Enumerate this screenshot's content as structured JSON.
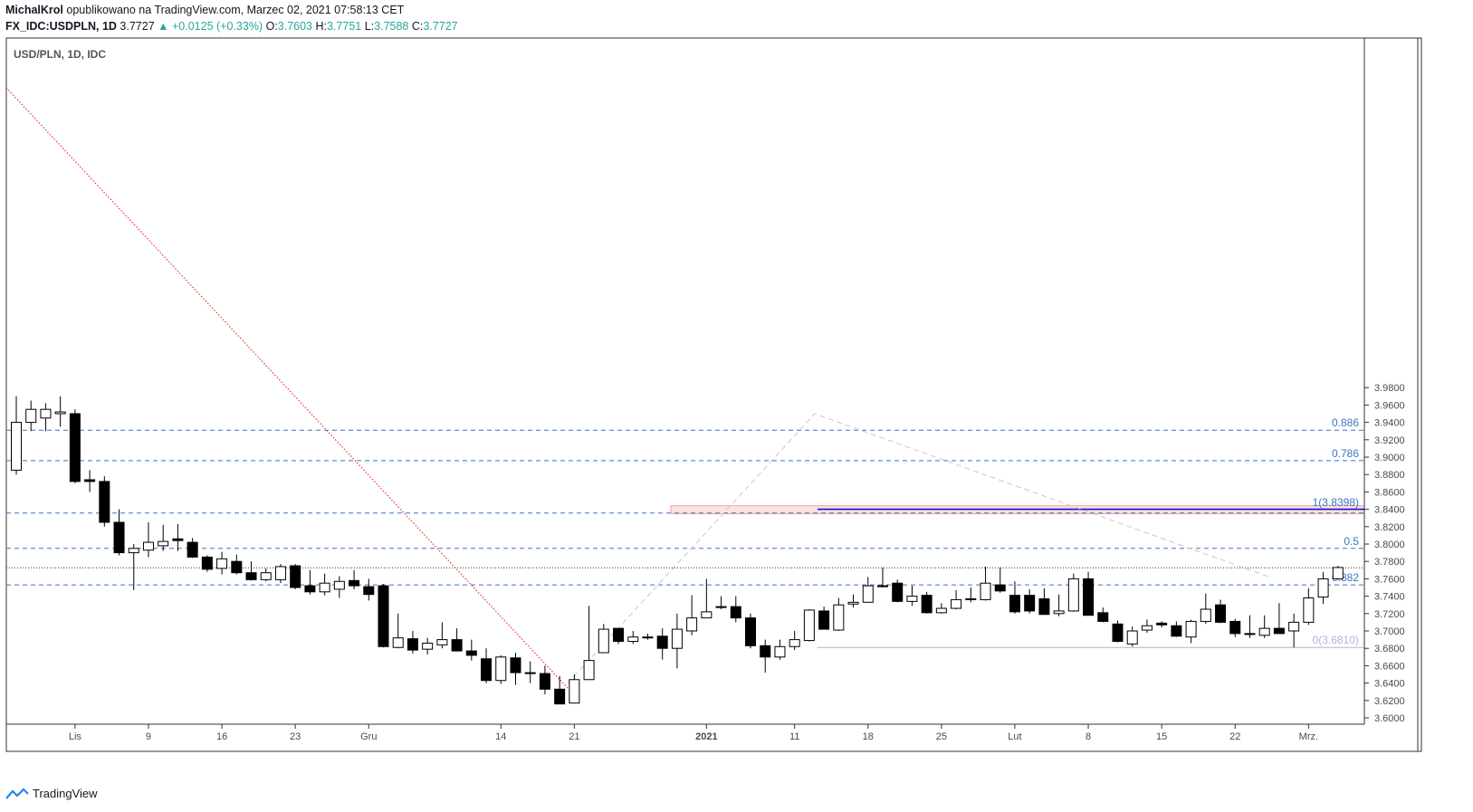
{
  "header": {
    "author": "MichalKrol",
    "published": "opublikowano na TradingView.com, Marzec 02, 2021 07:58:13 CET",
    "symbol": "FX_IDC:USDPLN, 1D",
    "last": "3.7727",
    "change": "+0.0125 (+0.33%)",
    "o_label": "O:",
    "o_val": "3.7603",
    "h_label": "H:",
    "h_val": "3.7751",
    "l_label": "L:",
    "l_val": "3.7588",
    "c_label": "C:",
    "c_val": "3.7727"
  },
  "footer": {
    "brand": "TradingView"
  },
  "chart_data": {
    "type": "candlestick",
    "title": "USD/PLN, 1D, IDC",
    "ylim": [
      3.596,
      3.992
    ],
    "y_ticks": [
      "3.6000",
      "3.6200",
      "3.6400",
      "3.6600",
      "3.6800",
      "3.7000",
      "3.7200",
      "3.7400",
      "3.7600",
      "3.7800",
      "3.8000",
      "3.8200",
      "3.8400",
      "3.8600",
      "3.8800",
      "3.9000",
      "3.9200",
      "3.9400",
      "3.9600",
      "3.9800"
    ],
    "x_tick_labels": [
      "Lis",
      "9",
      "16",
      "23",
      "Gru",
      "14",
      "21",
      "2021",
      "11",
      "18",
      "25",
      "Lut",
      "8",
      "15",
      "22",
      "Mrz."
    ],
    "x_tick_index": [
      4,
      9,
      14,
      19,
      24,
      33,
      38,
      47,
      53,
      58,
      63,
      68,
      73,
      78,
      83,
      88
    ],
    "candles": [
      {
        "o": 3.885,
        "h": 3.97,
        "l": 3.88,
        "c": 3.94
      },
      {
        "o": 3.94,
        "h": 3.965,
        "l": 3.93,
        "c": 3.955
      },
      {
        "o": 3.945,
        "h": 3.962,
        "l": 3.93,
        "c": 3.955
      },
      {
        "o": 3.95,
        "h": 3.97,
        "l": 3.935,
        "c": 3.952
      },
      {
        "o": 3.95,
        "h": 3.955,
        "l": 3.87,
        "c": 3.872
      },
      {
        "o": 3.874,
        "h": 3.885,
        "l": 3.86,
        "c": 3.872
      },
      {
        "o": 3.872,
        "h": 3.878,
        "l": 3.82,
        "c": 3.825
      },
      {
        "o": 3.825,
        "h": 3.84,
        "l": 3.787,
        "c": 3.79
      },
      {
        "o": 3.79,
        "h": 3.8,
        "l": 3.747,
        "c": 3.795
      },
      {
        "o": 3.793,
        "h": 3.825,
        "l": 3.785,
        "c": 3.802
      },
      {
        "o": 3.798,
        "h": 3.822,
        "l": 3.792,
        "c": 3.803
      },
      {
        "o": 3.806,
        "h": 3.823,
        "l": 3.792,
        "c": 3.804
      },
      {
        "o": 3.802,
        "h": 3.807,
        "l": 3.784,
        "c": 3.785
      },
      {
        "o": 3.785,
        "h": 3.787,
        "l": 3.768,
        "c": 3.771
      },
      {
        "o": 3.772,
        "h": 3.791,
        "l": 3.765,
        "c": 3.783
      },
      {
        "o": 3.78,
        "h": 3.788,
        "l": 3.765,
        "c": 3.767
      },
      {
        "o": 3.767,
        "h": 3.78,
        "l": 3.758,
        "c": 3.759
      },
      {
        "o": 3.759,
        "h": 3.772,
        "l": 3.757,
        "c": 3.767
      },
      {
        "o": 3.759,
        "h": 3.777,
        "l": 3.755,
        "c": 3.774
      },
      {
        "o": 3.775,
        "h": 3.777,
        "l": 3.748,
        "c": 3.75
      },
      {
        "o": 3.752,
        "h": 3.77,
        "l": 3.742,
        "c": 3.745
      },
      {
        "o": 3.745,
        "h": 3.766,
        "l": 3.741,
        "c": 3.755
      },
      {
        "o": 3.748,
        "h": 3.763,
        "l": 3.738,
        "c": 3.757
      },
      {
        "o": 3.758,
        "h": 3.77,
        "l": 3.748,
        "c": 3.752
      },
      {
        "o": 3.751,
        "h": 3.76,
        "l": 3.735,
        "c": 3.742
      },
      {
        "o": 3.752,
        "h": 3.754,
        "l": 3.681,
        "c": 3.682
      },
      {
        "o": 3.681,
        "h": 3.72,
        "l": 3.68,
        "c": 3.692
      },
      {
        "o": 3.691,
        "h": 3.7,
        "l": 3.674,
        "c": 3.678
      },
      {
        "o": 3.679,
        "h": 3.692,
        "l": 3.673,
        "c": 3.686
      },
      {
        "o": 3.684,
        "h": 3.71,
        "l": 3.68,
        "c": 3.69
      },
      {
        "o": 3.69,
        "h": 3.703,
        "l": 3.677,
        "c": 3.677
      },
      {
        "o": 3.677,
        "h": 3.69,
        "l": 3.666,
        "c": 3.672
      },
      {
        "o": 3.668,
        "h": 3.68,
        "l": 3.64,
        "c": 3.643
      },
      {
        "o": 3.643,
        "h": 3.672,
        "l": 3.639,
        "c": 3.67
      },
      {
        "o": 3.669,
        "h": 3.675,
        "l": 3.638,
        "c": 3.652
      },
      {
        "o": 3.652,
        "h": 3.665,
        "l": 3.64,
        "c": 3.651
      },
      {
        "o": 3.651,
        "h": 3.66,
        "l": 3.627,
        "c": 3.633
      },
      {
        "o": 3.633,
        "h": 3.648,
        "l": 3.616,
        "c": 3.616
      },
      {
        "o": 3.617,
        "h": 3.65,
        "l": 3.617,
        "c": 3.644
      },
      {
        "o": 3.644,
        "h": 3.729,
        "l": 3.644,
        "c": 3.666
      },
      {
        "o": 3.675,
        "h": 3.708,
        "l": 3.675,
        "c": 3.702
      },
      {
        "o": 3.703,
        "h": 3.702,
        "l": 3.685,
        "c": 3.688
      },
      {
        "o": 3.688,
        "h": 3.7,
        "l": 3.685,
        "c": 3.693
      },
      {
        "o": 3.693,
        "h": 3.697,
        "l": 3.69,
        "c": 3.692
      },
      {
        "o": 3.694,
        "h": 3.703,
        "l": 3.667,
        "c": 3.68
      },
      {
        "o": 3.68,
        "h": 3.72,
        "l": 3.657,
        "c": 3.702
      },
      {
        "o": 3.7,
        "h": 3.741,
        "l": 3.695,
        "c": 3.715
      },
      {
        "o": 3.715,
        "h": 3.76,
        "l": 3.715,
        "c": 3.722
      },
      {
        "o": 3.728,
        "h": 3.74,
        "l": 3.725,
        "c": 3.727
      },
      {
        "o": 3.728,
        "h": 3.74,
        "l": 3.71,
        "c": 3.715
      },
      {
        "o": 3.715,
        "h": 3.72,
        "l": 3.68,
        "c": 3.683
      },
      {
        "o": 3.683,
        "h": 3.69,
        "l": 3.652,
        "c": 3.67
      },
      {
        "o": 3.67,
        "h": 3.69,
        "l": 3.667,
        "c": 3.682
      },
      {
        "o": 3.682,
        "h": 3.7,
        "l": 3.678,
        "c": 3.69
      },
      {
        "o": 3.689,
        "h": 3.725,
        "l": 3.688,
        "c": 3.724
      },
      {
        "o": 3.723,
        "h": 3.728,
        "l": 3.702,
        "c": 3.702
      },
      {
        "o": 3.701,
        "h": 3.738,
        "l": 3.7,
        "c": 3.73
      },
      {
        "o": 3.731,
        "h": 3.742,
        "l": 3.727,
        "c": 3.733
      },
      {
        "o": 3.733,
        "h": 3.762,
        "l": 3.733,
        "c": 3.752
      },
      {
        "o": 3.752,
        "h": 3.773,
        "l": 3.75,
        "c": 3.751
      },
      {
        "o": 3.755,
        "h": 3.759,
        "l": 3.733,
        "c": 3.734
      },
      {
        "o": 3.734,
        "h": 3.752,
        "l": 3.729,
        "c": 3.74
      },
      {
        "o": 3.741,
        "h": 3.745,
        "l": 3.72,
        "c": 3.721
      },
      {
        "o": 3.721,
        "h": 3.732,
        "l": 3.72,
        "c": 3.726
      },
      {
        "o": 3.726,
        "h": 3.747,
        "l": 3.725,
        "c": 3.736
      },
      {
        "o": 3.736,
        "h": 3.75,
        "l": 3.733,
        "c": 3.737
      },
      {
        "o": 3.736,
        "h": 3.774,
        "l": 3.735,
        "c": 3.755
      },
      {
        "o": 3.753,
        "h": 3.773,
        "l": 3.744,
        "c": 3.746
      },
      {
        "o": 3.741,
        "h": 3.757,
        "l": 3.72,
        "c": 3.722
      },
      {
        "o": 3.741,
        "h": 3.748,
        "l": 3.72,
        "c": 3.723
      },
      {
        "o": 3.737,
        "h": 3.749,
        "l": 3.719,
        "c": 3.719
      },
      {
        "o": 3.72,
        "h": 3.742,
        "l": 3.717,
        "c": 3.723
      },
      {
        "o": 3.723,
        "h": 3.766,
        "l": 3.722,
        "c": 3.76
      },
      {
        "o": 3.76,
        "h": 3.768,
        "l": 3.718,
        "c": 3.718
      },
      {
        "o": 3.721,
        "h": 3.727,
        "l": 3.71,
        "c": 3.711
      },
      {
        "o": 3.708,
        "h": 3.712,
        "l": 3.687,
        "c": 3.688
      },
      {
        "o": 3.685,
        "h": 3.705,
        "l": 3.682,
        "c": 3.7
      },
      {
        "o": 3.701,
        "h": 3.713,
        "l": 3.698,
        "c": 3.706
      },
      {
        "o": 3.709,
        "h": 3.711,
        "l": 3.704,
        "c": 3.707
      },
      {
        "o": 3.706,
        "h": 3.711,
        "l": 3.693,
        "c": 3.694
      },
      {
        "o": 3.693,
        "h": 3.713,
        "l": 3.686,
        "c": 3.711
      },
      {
        "o": 3.711,
        "h": 3.743,
        "l": 3.708,
        "c": 3.725
      },
      {
        "o": 3.73,
        "h": 3.736,
        "l": 3.709,
        "c": 3.71
      },
      {
        "o": 3.711,
        "h": 3.714,
        "l": 3.693,
        "c": 3.697
      },
      {
        "o": 3.697,
        "h": 3.718,
        "l": 3.692,
        "c": 3.696
      },
      {
        "o": 3.695,
        "h": 3.718,
        "l": 3.692,
        "c": 3.703
      },
      {
        "o": 3.703,
        "h": 3.732,
        "l": 3.7,
        "c": 3.697
      },
      {
        "o": 3.7,
        "h": 3.72,
        "l": 3.681,
        "c": 3.71
      },
      {
        "o": 3.71,
        "h": 3.749,
        "l": 3.707,
        "c": 3.738
      },
      {
        "o": 3.739,
        "h": 3.768,
        "l": 3.731,
        "c": 3.76
      },
      {
        "o": 3.76,
        "h": 3.775,
        "l": 3.759,
        "c": 3.773
      }
    ],
    "fib_levels": [
      {
        "label": "0.886",
        "value": 3.931
      },
      {
        "label": "0.786",
        "value": 3.896
      },
      {
        "label": "1(3.8398)",
        "value": 3.8398
      },
      {
        "label": "0.5",
        "value": 3.795
      },
      {
        "label": "0.382",
        "value": 3.753
      },
      {
        "label": "0(3.6810)",
        "value": 3.681
      }
    ],
    "last_price": 3.7727,
    "resistance_zone": [
      3.835,
      3.844
    ],
    "resistance_line": 3.84
  }
}
